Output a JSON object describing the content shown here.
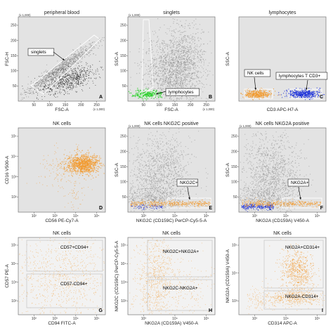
{
  "colors": {
    "gray": "#8a8a8a",
    "dark": "#1e1e1e",
    "orange": "#f29a2e",
    "blue": "#1a2fd9",
    "green": "#2fd12f"
  },
  "chart_data": [
    {
      "type": "scatter",
      "letter": "A",
      "title": "peripheral blood",
      "xlabel": "FSC-A",
      "ylabel": "FSC-H",
      "xscale": "(x 1,000)",
      "yscale": "(x 1,000)",
      "xticks": [
        "50",
        "100",
        "150",
        "200",
        "250"
      ],
      "yticks": [
        "50",
        "100",
        "150",
        "200",
        "250"
      ],
      "xlim": [
        0,
        260
      ],
      "ylim": [
        0,
        260
      ],
      "gates": [
        "singlets"
      ]
    },
    {
      "type": "scatter",
      "letter": "B",
      "title": "singlets",
      "xlabel": "FSC-A",
      "ylabel": "SSC-A",
      "xscale": "(x 1,000)",
      "yscale": "(x 1,000)",
      "xticks": [
        "50",
        "100",
        "150",
        "200",
        "250"
      ],
      "yticks": [
        "50",
        "100",
        "150",
        "200",
        "250"
      ],
      "xlim": [
        0,
        260
      ],
      "ylim": [
        0,
        260
      ],
      "gates": [
        "lymphocytes"
      ]
    },
    {
      "type": "scatter",
      "letter": "C",
      "title": "lymphocytes",
      "xlabel": "CD3 APC-H7-A",
      "ylabel": "SSC-A",
      "gates": [
        "NK cells",
        "lymphocytes T CD3+"
      ]
    },
    {
      "type": "scatter",
      "letter": "D",
      "title": "NK cells",
      "xlabel": "CD56 PE-Cy7-A",
      "ylabel": "CD16 V500-A",
      "xticks": [
        "10²",
        "10³",
        "10⁴",
        "10⁵"
      ],
      "yticks": [
        "10²",
        "10³",
        "10⁴",
        "10⁵"
      ],
      "gates": []
    },
    {
      "type": "scatter",
      "letter": "E",
      "title": "NK cells NKG2C positive",
      "xlabel": "NKG2C (CD159C) PerCP-Cy5-5-A",
      "ylabel": "SSC-A",
      "yscale": "(x 1,000)",
      "yticks": [
        "50",
        "100",
        "150",
        "200",
        "250"
      ],
      "xticks": [
        "10³",
        "10⁴",
        "10⁵"
      ],
      "gates": [
        "NKG2C+"
      ]
    },
    {
      "type": "scatter",
      "letter": "F",
      "title": "NK cells NKG2A positive",
      "xlabel": "NKG2A (CD159A) V450-A",
      "ylabel": "SSC-A",
      "yscale": "(x 1,000)",
      "yticks": [
        "50",
        "100",
        "150",
        "200",
        "250"
      ],
      "xticks": [
        "10³",
        "10⁴",
        "10⁵"
      ],
      "gates": [
        "NKG2A+"
      ]
    },
    {
      "type": "scatter",
      "letter": "G",
      "title": "NK cells",
      "xlabel": "CD94 FITC-A",
      "ylabel": "CD57 PE-A",
      "xticks": [
        "10²",
        "10³",
        "10⁴",
        "10⁵"
      ],
      "yticks": [
        "10²",
        "10³",
        "10⁴",
        "10⁵"
      ],
      "gates": [
        "CD57+CD94+",
        "CD57-CD94+"
      ]
    },
    {
      "type": "scatter",
      "letter": "H",
      "title": "NK cells",
      "xlabel": "NKG2A (CD159A) V450-A",
      "ylabel": "NKG2C (CD159C) PerCP-Cy5-5-A",
      "xticks": [
        "10³",
        "10⁴",
        "10⁵"
      ],
      "yticks": [
        "10²",
        "10³",
        "10⁴",
        "10⁵"
      ],
      "gates": [
        "NKG2C+NKG2A+",
        "NKG2C-NKG2A+"
      ]
    },
    {
      "type": "scatter",
      "letter": "I",
      "title": "NK cells",
      "xlabel": "CD314 APC-A",
      "ylabel": "NKG2A (CD159A) V450-A",
      "xticks": [
        "10³",
        "10⁴",
        "10⁵"
      ],
      "yticks": [
        "10³",
        "10⁴",
        "10⁵"
      ],
      "gates": [
        "NKG2A+CD314+",
        "NKG2A-CD314+"
      ]
    }
  ]
}
